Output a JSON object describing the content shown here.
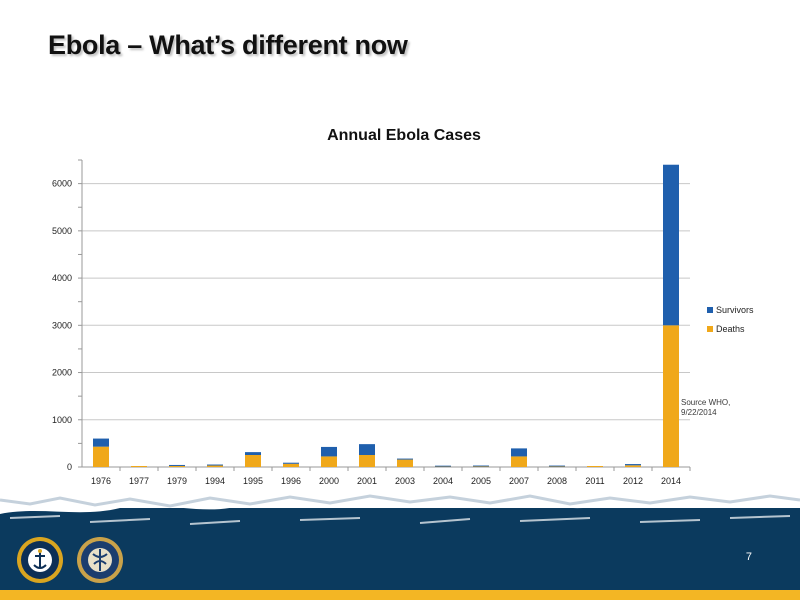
{
  "slide": {
    "title": "Ebola – What’s different now",
    "source_note": "Source WHO,\n9/22/2014",
    "page_number": "7"
  },
  "logos": {
    "left_seal_name": "navy-marine-corps-public-health-center-seal",
    "right_seal_name": "navy-medicine-seal",
    "left_seal_text": "NAVY AND MARINE CORPS PUBLIC HEALTH CENTER",
    "right_seal_text": "NAVY MEDICINE"
  },
  "colors": {
    "survivors": "#1f5fad",
    "deaths": "#f0a81a",
    "footer_band": "#0b3a5e",
    "footer_stripe": "#f3b624"
  },
  "chart_data": {
    "type": "bar",
    "stacked": true,
    "title": "Annual Ebola Cases",
    "categories": [
      "1976",
      "1977",
      "1979",
      "1994",
      "1995",
      "1996",
      "2000",
      "2001",
      "2003",
      "2004",
      "2005",
      "2007",
      "2008",
      "2011",
      "2012",
      "2014"
    ],
    "series": [
      {
        "name": "Deaths",
        "color": "#f0a81a",
        "values": [
          431,
          1,
          22,
          31,
          254,
          68,
          224,
          254,
          157,
          7,
          10,
          224,
          9,
          1,
          36,
          3000
        ]
      },
      {
        "name": "Survivors",
        "color": "#1f5fad",
        "values": [
          171,
          0,
          12,
          21,
          61,
          23,
          201,
          230,
          21,
          9,
          2,
          170,
          5,
          0,
          26,
          3400
        ]
      }
    ],
    "y_ticks": [
      0,
      1000,
      2000,
      3000,
      4000,
      5000,
      6000
    ],
    "ylim": [
      0,
      6500
    ],
    "grid": true,
    "legend_position": "right"
  }
}
